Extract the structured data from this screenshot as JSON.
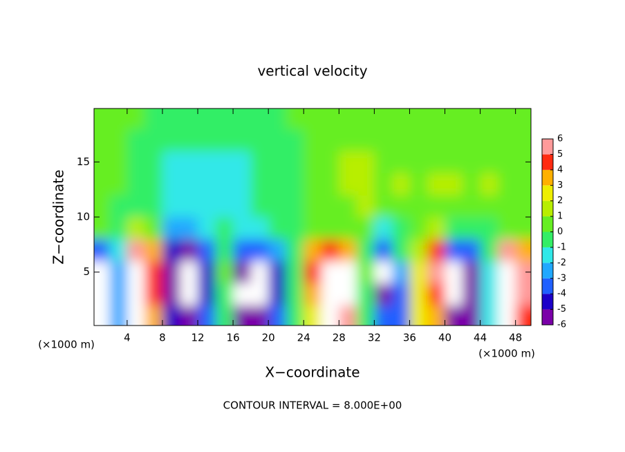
{
  "chart_data": {
    "type": "contourf",
    "title": "vertical velocity",
    "x_label": "X−coordinate",
    "y_label": "Z−coordinate",
    "x_unit": "(×1000 m)",
    "y_unit": "(×1000 m)",
    "note": "CONTOUR INTERVAL = 8.000E+00",
    "x": [
      1,
      3,
      5,
      7,
      9,
      11,
      13,
      15,
      17,
      19,
      21,
      23,
      25,
      27,
      29,
      31,
      33,
      35,
      37,
      39,
      41,
      43,
      45,
      47,
      49
    ],
    "y": [
      1,
      3,
      5,
      7,
      9,
      11,
      13,
      15,
      17,
      19
    ],
    "values": [
      [
        -7,
        -2,
        7,
        4,
        -4,
        -6,
        -3,
        0,
        -5,
        -6,
        -3,
        0,
        3,
        7,
        6,
        0,
        -3,
        -3,
        3,
        4,
        -6,
        -5,
        -1,
        7,
        5
      ],
      [
        -8,
        -2,
        9,
        5,
        -5,
        -9,
        -4,
        0,
        -7,
        -8,
        -4,
        0,
        4,
        9,
        8,
        0,
        -5,
        -3,
        3,
        5,
        -8,
        -5,
        -1,
        9,
        6
      ],
      [
        -7,
        -2,
        9,
        5,
        -5,
        -9,
        -4,
        1,
        -6,
        -7,
        -4,
        0,
        5,
        9,
        7,
        1,
        -7,
        -2,
        3,
        6,
        -7,
        -5,
        -1,
        9,
        6
      ],
      [
        -3,
        -1,
        6,
        4,
        -4,
        -5,
        -3,
        0,
        -3,
        -3,
        -2,
        0,
        4,
        5,
        4,
        0,
        -3,
        0,
        2,
        5,
        -3,
        -3,
        0,
        6,
        4
      ],
      [
        0.5,
        0,
        2,
        1,
        -2,
        -2,
        -1,
        -0.5,
        -1,
        -1,
        -0.5,
        0,
        1,
        1,
        1,
        1,
        -1,
        0,
        1,
        2,
        0,
        0,
        0,
        1,
        1
      ],
      [
        0.5,
        0,
        0,
        -0.5,
        -1.5,
        -1.5,
        -1,
        -1,
        -1,
        -0.5,
        -0.5,
        0,
        0.5,
        1,
        1,
        1.5,
        1,
        1,
        1,
        1,
        1,
        0.5,
        1,
        1,
        1
      ],
      [
        0.5,
        0.5,
        0,
        -0.5,
        -1,
        -1.5,
        -1.5,
        -1,
        -1,
        -0.5,
        0,
        0,
        0.5,
        1,
        2,
        2,
        1,
        1.5,
        1,
        1.5,
        1.5,
        1,
        1.5,
        1,
        1
      ],
      [
        0.5,
        0.5,
        0,
        -0.5,
        -1,
        -1,
        -1,
        -1,
        -1,
        -0.5,
        0,
        0,
        0.5,
        1,
        1.5,
        1.5,
        1,
        1,
        1,
        1,
        1,
        1,
        1,
        1,
        1
      ],
      [
        0.5,
        0.5,
        0,
        0,
        -0.5,
        -0.5,
        -0.5,
        -0.5,
        -0.5,
        0,
        0,
        0,
        0.5,
        1,
        1,
        1,
        1,
        1,
        1,
        1,
        1,
        1,
        1,
        1,
        1
      ],
      [
        0.5,
        0.5,
        0.5,
        0,
        0,
        0,
        0,
        0,
        0,
        0,
        0,
        0.5,
        0.5,
        1,
        1,
        1,
        1,
        1,
        1,
        1,
        1,
        1,
        1,
        1,
        1
      ]
    ],
    "xlim": [
      0.25,
      49.75
    ],
    "ylim": [
      0.15,
      19.85
    ],
    "xticks": [
      4,
      8,
      12,
      16,
      20,
      24,
      28,
      32,
      36,
      40,
      44,
      48
    ],
    "yticks": [
      5,
      10,
      15
    ],
    "levels": [
      -6,
      -5,
      -4,
      -3,
      -2,
      -1,
      0,
      1,
      2,
      3,
      4,
      5,
      6
    ],
    "colors": [
      "#7a00a8",
      "#1c00c8",
      "#2060ff",
      "#20a8ff",
      "#30e8e8",
      "#33ee66",
      "#66ee22",
      "#b8ee00",
      "#eeee00",
      "#ffb000",
      "#ff2a10",
      "#ff9a9a"
    ],
    "out_of_range_color": "#ffffff"
  }
}
